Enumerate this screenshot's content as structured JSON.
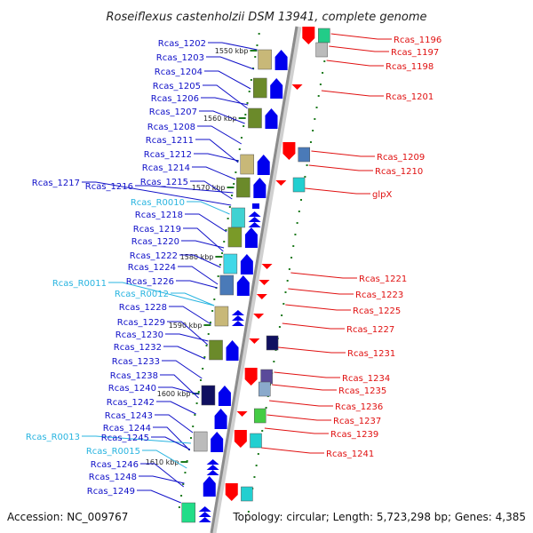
{
  "title": "Roseiflexus castenholzii DSM 13941, complete genome",
  "footer": {
    "accession": "Accession: NC_009767",
    "summary": "Topology: circular; Length: 5,723,298 bp; Genes: 4,385"
  },
  "colors": {
    "backbone": "#8c8c8c",
    "left_label": "#1010c8",
    "rna_label": "#28b4e0",
    "right_label": "#e01010",
    "plus_strand": "#0000ee",
    "minus_strand": "#ff0000",
    "tick": "#1e7a1e"
  },
  "kbp_ticks": [
    "1550 kbp",
    "1560 kbp",
    "1570 kbp",
    "1580 kbp",
    "1590 kbp",
    "1600 kbp",
    "1610 kbp"
  ],
  "left_labels": [
    {
      "text": "Rcas_1202",
      "kind": "cds"
    },
    {
      "text": "Rcas_1203",
      "kind": "cds"
    },
    {
      "text": "Rcas_1204",
      "kind": "cds"
    },
    {
      "text": "Rcas_1205",
      "kind": "cds"
    },
    {
      "text": "Rcas_1206",
      "kind": "cds"
    },
    {
      "text": "Rcas_1207",
      "kind": "cds"
    },
    {
      "text": "Rcas_1208",
      "kind": "cds"
    },
    {
      "text": "Rcas_1211",
      "kind": "cds"
    },
    {
      "text": "Rcas_1212",
      "kind": "cds"
    },
    {
      "text": "Rcas_1214",
      "kind": "cds"
    },
    {
      "text": "Rcas_1215",
      "kind": "cds"
    },
    {
      "text": "Rcas_1217",
      "kind": "cds"
    },
    {
      "text": "Rcas_1216",
      "kind": "cds"
    },
    {
      "text": "Rcas_R0010",
      "kind": "rna"
    },
    {
      "text": "Rcas_1218",
      "kind": "cds"
    },
    {
      "text": "Rcas_1219",
      "kind": "cds"
    },
    {
      "text": "Rcas_1220",
      "kind": "cds"
    },
    {
      "text": "Rcas_1222",
      "kind": "cds"
    },
    {
      "text": "Rcas_1224",
      "kind": "cds"
    },
    {
      "text": "Rcas_R0011",
      "kind": "rna"
    },
    {
      "text": "Rcas_1226",
      "kind": "cds"
    },
    {
      "text": "Rcas_R0012",
      "kind": "rna"
    },
    {
      "text": "Rcas_1228",
      "kind": "cds"
    },
    {
      "text": "Rcas_1229",
      "kind": "cds"
    },
    {
      "text": "Rcas_1230",
      "kind": "cds"
    },
    {
      "text": "Rcas_1232",
      "kind": "cds"
    },
    {
      "text": "Rcas_1233",
      "kind": "cds"
    },
    {
      "text": "Rcas_1238",
      "kind": "cds"
    },
    {
      "text": "Rcas_1240",
      "kind": "cds"
    },
    {
      "text": "Rcas_1242",
      "kind": "cds"
    },
    {
      "text": "Rcas_1243",
      "kind": "cds"
    },
    {
      "text": "Rcas_1244",
      "kind": "cds"
    },
    {
      "text": "Rcas_R0013",
      "kind": "rna"
    },
    {
      "text": "Rcas_1245",
      "kind": "cds"
    },
    {
      "text": "Rcas_R0015",
      "kind": "rna"
    },
    {
      "text": "Rcas_1246",
      "kind": "cds"
    },
    {
      "text": "Rcas_1248",
      "kind": "cds"
    },
    {
      "text": "Rcas_1249",
      "kind": "cds"
    }
  ],
  "right_labels": [
    {
      "text": "Rcas_1196"
    },
    {
      "text": "Rcas_1197"
    },
    {
      "text": "Rcas_1198"
    },
    {
      "text": "Rcas_1201"
    },
    {
      "text": "Rcas_1209"
    },
    {
      "text": "Rcas_1210"
    },
    {
      "text": "glpX"
    },
    {
      "text": "Rcas_1221"
    },
    {
      "text": "Rcas_1223"
    },
    {
      "text": "Rcas_1225"
    },
    {
      "text": "Rcas_1227"
    },
    {
      "text": "Rcas_1231"
    },
    {
      "text": "Rcas_1234"
    },
    {
      "text": "Rcas_1235"
    },
    {
      "text": "Rcas_1236"
    },
    {
      "text": "Rcas_1237"
    },
    {
      "text": "Rcas_1239"
    },
    {
      "text": "Rcas_1241"
    }
  ]
}
